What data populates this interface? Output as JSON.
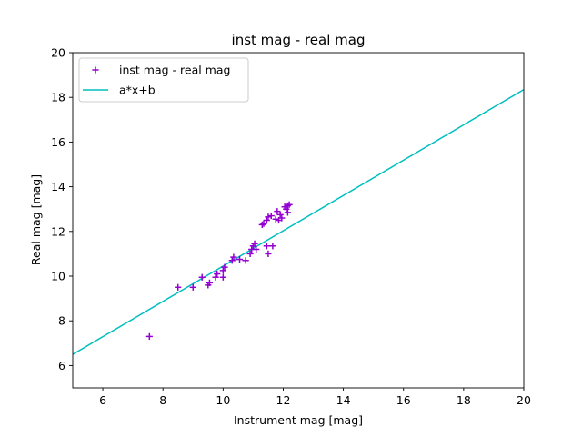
{
  "chart_data": {
    "type": "scatter",
    "title": "inst mag - real mag",
    "xlabel": "Instrument mag [mag]",
    "ylabel": "Real mag [mag]",
    "xlim": [
      5,
      20
    ],
    "ylim": [
      5,
      20
    ],
    "x_ticks": [
      6,
      8,
      10,
      12,
      14,
      16,
      18,
      20
    ],
    "y_ticks": [
      6,
      8,
      10,
      12,
      14,
      16,
      18,
      20
    ],
    "grid": false,
    "legend_placement": "top-left",
    "series": [
      {
        "name": "inst mag - real mag",
        "kind": "scatter",
        "marker": "plus",
        "color": "#9400d3",
        "points": [
          [
            7.55,
            7.3
          ],
          [
            8.5,
            9.5
          ],
          [
            9.0,
            9.5
          ],
          [
            9.3,
            9.95
          ],
          [
            9.5,
            9.6
          ],
          [
            9.55,
            9.7
          ],
          [
            9.75,
            9.95
          ],
          [
            9.8,
            10.1
          ],
          [
            10.0,
            9.95
          ],
          [
            10.0,
            10.25
          ],
          [
            10.05,
            10.4
          ],
          [
            10.3,
            10.7
          ],
          [
            10.35,
            10.85
          ],
          [
            10.55,
            10.75
          ],
          [
            10.75,
            10.7
          ],
          [
            10.9,
            11.0
          ],
          [
            10.95,
            11.2
          ],
          [
            11.0,
            11.35
          ],
          [
            11.05,
            11.45
          ],
          [
            11.1,
            11.2
          ],
          [
            11.3,
            12.3
          ],
          [
            11.35,
            12.35
          ],
          [
            11.45,
            12.5
          ],
          [
            11.5,
            12.65
          ],
          [
            11.45,
            11.35
          ],
          [
            11.5,
            11.0
          ],
          [
            11.65,
            11.35
          ],
          [
            11.6,
            12.7
          ],
          [
            11.75,
            12.55
          ],
          [
            11.8,
            12.9
          ],
          [
            11.85,
            12.5
          ],
          [
            11.9,
            12.75
          ],
          [
            11.95,
            12.6
          ],
          [
            12.05,
            13.1
          ],
          [
            12.1,
            13.0
          ],
          [
            12.15,
            12.85
          ],
          [
            12.2,
            13.2
          ],
          [
            12.15,
            13.15
          ]
        ]
      },
      {
        "name": "a*x+b",
        "kind": "line",
        "color": "#00bfbf",
        "points": [
          [
            5,
            6.5
          ],
          [
            20,
            18.35
          ]
        ]
      }
    ]
  }
}
